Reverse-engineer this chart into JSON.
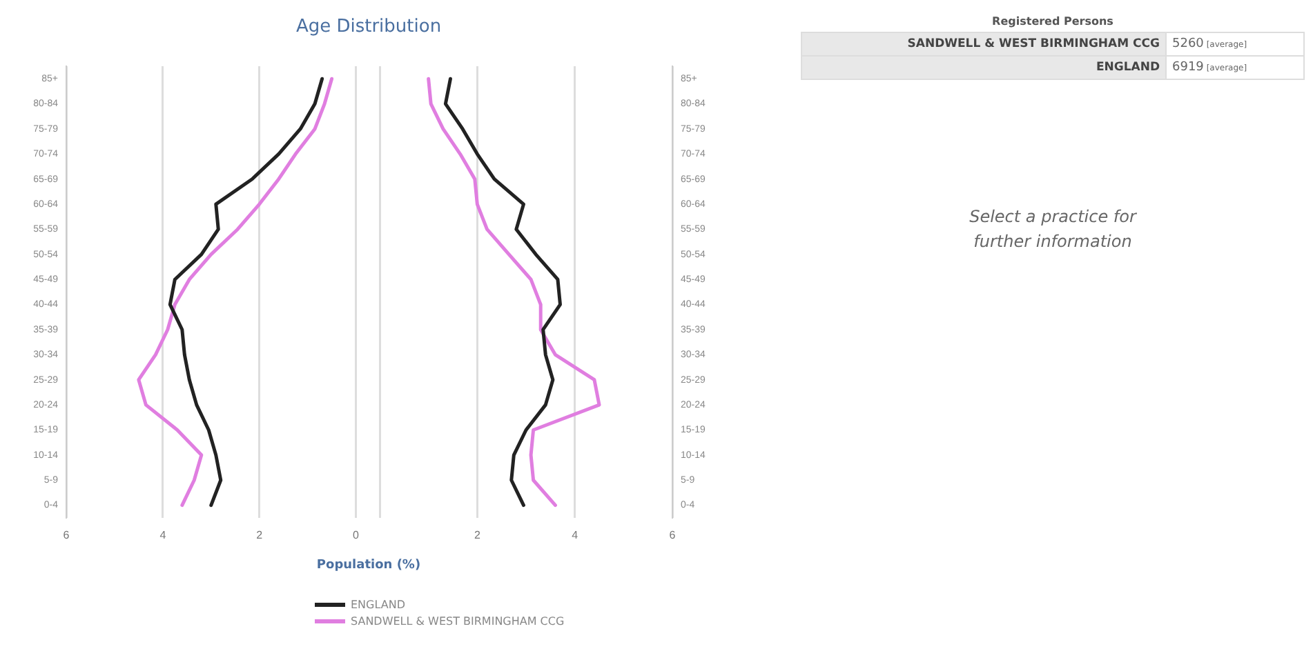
{
  "chart_data": [
    {
      "type": "line",
      "orientation": "horizontal",
      "title": "Age Distribution",
      "xlabel": "Population (%)",
      "legend": "bottom",
      "grid": "x",
      "categories": [
        "85+",
        "80-84",
        "75-79",
        "70-74",
        "65-69",
        "60-64",
        "55-59",
        "50-54",
        "45-49",
        "40-44",
        "35-39",
        "30-34",
        "25-29",
        "20-24",
        "15-19",
        "10-14",
        "5-9",
        "0-4"
      ],
      "xlim": [
        6,
        0
      ],
      "xticks": [
        6,
        4,
        2,
        0
      ],
      "series": [
        {
          "name": "ENGLAND",
          "color": "#222222",
          "values": [
            0.7,
            0.85,
            1.15,
            1.6,
            2.15,
            2.9,
            2.85,
            3.2,
            3.75,
            3.85,
            3.6,
            3.55,
            3.45,
            3.3,
            3.05,
            2.9,
            2.8,
            3.0
          ]
        },
        {
          "name": "SANDWELL & WEST BIRMINGHAM CCG",
          "color": "#e07ee0",
          "values": [
            0.5,
            0.65,
            0.85,
            1.25,
            1.6,
            2.0,
            2.45,
            3.0,
            3.45,
            3.75,
            3.9,
            4.15,
            4.5,
            4.35,
            3.7,
            3.2,
            3.35,
            3.6
          ]
        }
      ]
    },
    {
      "type": "line",
      "orientation": "horizontal",
      "grid": "x",
      "categories": [
        "85+",
        "80-84",
        "75-79",
        "70-74",
        "65-69",
        "60-64",
        "55-59",
        "50-54",
        "45-49",
        "40-44",
        "35-39",
        "30-34",
        "25-29",
        "20-24",
        "15-19",
        "10-14",
        "5-9",
        "0-4"
      ],
      "xlim": [
        0,
        6
      ],
      "xticks": [
        {
          "value": 0,
          "label": null
        },
        2,
        4,
        6
      ],
      "series": [
        {
          "color": "#222222",
          "values": [
            1.45,
            1.35,
            1.7,
            2.0,
            2.35,
            2.95,
            2.8,
            3.2,
            3.65,
            3.7,
            3.35,
            3.4,
            3.55,
            3.4,
            3.0,
            2.75,
            2.7,
            2.95
          ]
        },
        {
          "color": "#e07ee0",
          "values": [
            1.0,
            1.05,
            1.3,
            1.65,
            1.95,
            2.0,
            2.2,
            2.65,
            3.1,
            3.3,
            3.3,
            3.6,
            4.4,
            4.5,
            3.15,
            3.1,
            3.15,
            3.6
          ]
        }
      ]
    },
    {
      "type": "other",
      "title": "Registered Persons",
      "categories": [
        "SANDWELL & WEST BIRMINGHAM CCG",
        "ENGLAND"
      ],
      "values": [
        5260,
        6919
      ],
      "data_labels": true,
      "annotations": [
        "[average]",
        "[average]",
        "Select a practice for further information"
      ]
    }
  ]
}
